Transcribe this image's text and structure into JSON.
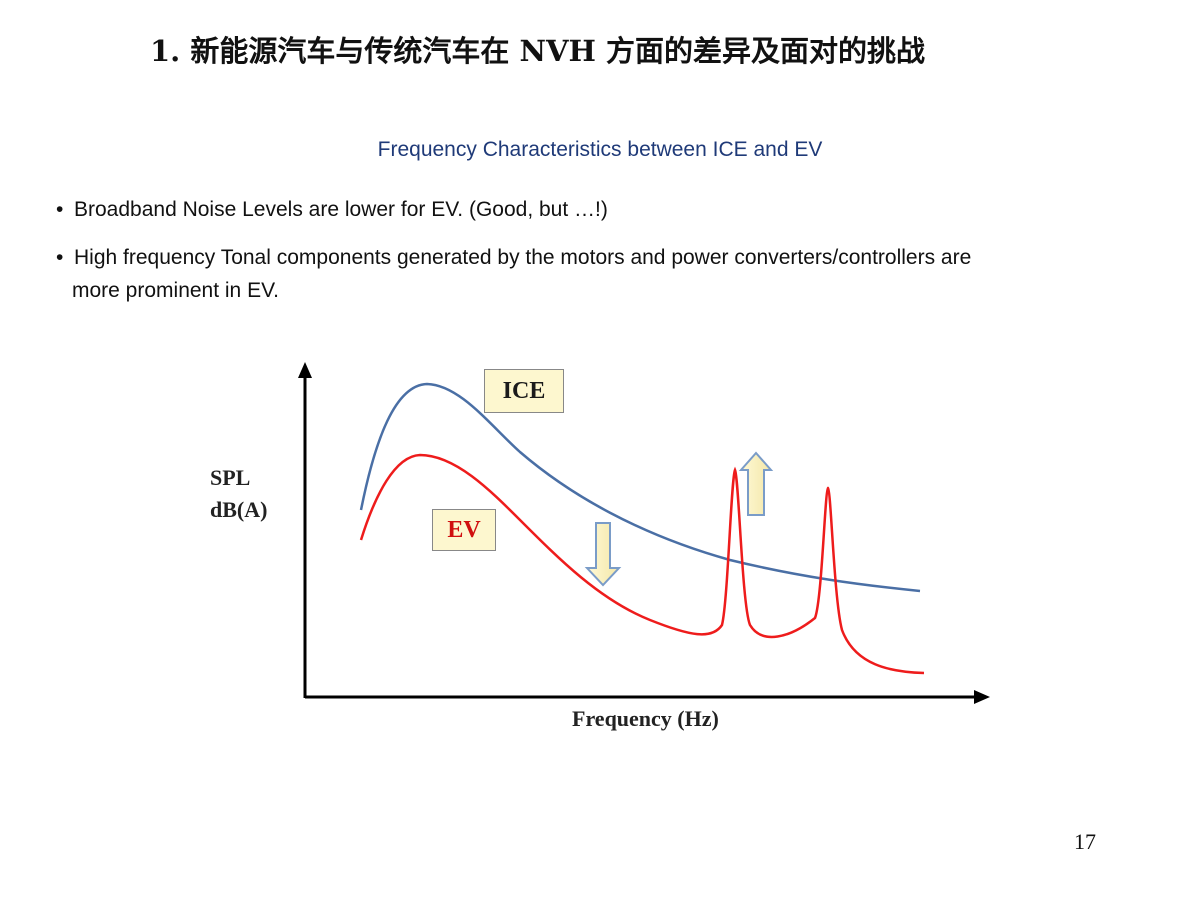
{
  "slide": {
    "title": "1.   新能源汽车与传统汽车在 NVH 方面的差异及面对的挑战",
    "subtitle": "Frequency Characteristics between ICE and EV",
    "bullets": [
      {
        "symbol": "•",
        "line1": "Broadband Noise Levels are lower for EV.  (Good, but …!)",
        "line2": ""
      },
      {
        "symbol": "•",
        "line1": "High frequency Tonal components generated by the motors and power converters/controllers are",
        "line2": "more prominent in EV."
      }
    ],
    "page_number": "17"
  },
  "chart_data": {
    "type": "line",
    "ylabel_line1": "SPL",
    "ylabel_line2": "dB(A)",
    "xlabel": "Frequency (Hz)",
    "grid": false,
    "series": [
      {
        "name": "ICE",
        "color": "#4a6fa5",
        "label_color": "#1b1b1b"
      },
      {
        "name": "EV",
        "color": "#ee1c1c",
        "label_color": "#d01010"
      }
    ],
    "annotations": [
      {
        "type": "arrow-down",
        "near": "broadband curve",
        "color": "#7a9cc8"
      },
      {
        "type": "arrow-up",
        "near": "tonal peak",
        "color": "#7a9cc8"
      }
    ]
  }
}
